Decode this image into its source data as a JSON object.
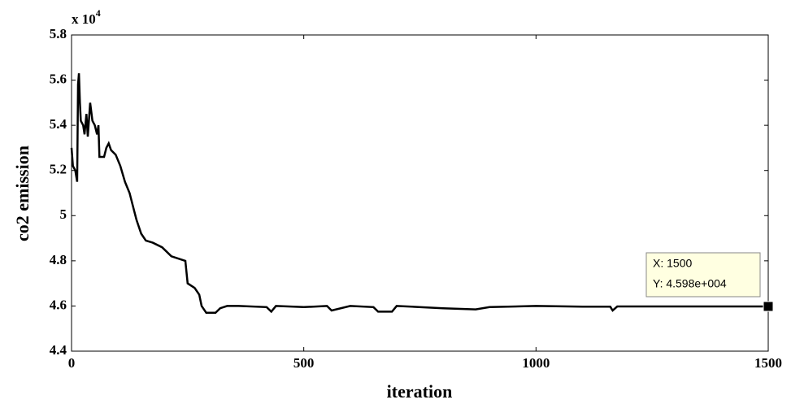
{
  "chart_data": {
    "type": "line",
    "xlabel": "iteration",
    "ylabel": "co2 emission",
    "y_multiplier": {
      "base": "x 10",
      "exponent": "4"
    },
    "xlim": [
      0,
      1500
    ],
    "ylim": [
      4.4,
      5.8
    ],
    "xticks": [
      0,
      500,
      1000,
      1500
    ],
    "yticks": [
      4.4,
      4.6,
      4.8,
      5,
      5.2,
      5.4,
      5.6,
      5.8
    ],
    "x": [
      0,
      3,
      8,
      12,
      14,
      16,
      18,
      20,
      25,
      28,
      32,
      35,
      40,
      45,
      50,
      55,
      58,
      60,
      70,
      75,
      80,
      85,
      95,
      105,
      115,
      125,
      135,
      140,
      150,
      160,
      175,
      195,
      215,
      245,
      250,
      265,
      275,
      280,
      290,
      310,
      320,
      335,
      360,
      420,
      430,
      440,
      500,
      550,
      560,
      600,
      650,
      660,
      690,
      700,
      800,
      870,
      900,
      1000,
      1100,
      1160,
      1165,
      1175,
      1500
    ],
    "series": [
      {
        "color": "#000000",
        "values": [
          5.3,
          5.22,
          5.2,
          5.15,
          5.58,
          5.63,
          5.5,
          5.42,
          5.4,
          5.36,
          5.45,
          5.35,
          5.5,
          5.42,
          5.4,
          5.36,
          5.4,
          5.26,
          5.26,
          5.3,
          5.32,
          5.29,
          5.27,
          5.22,
          5.15,
          5.1,
          5.02,
          4.98,
          4.92,
          4.89,
          4.88,
          4.86,
          4.82,
          4.8,
          4.7,
          4.68,
          4.65,
          4.6,
          4.57,
          4.57,
          4.59,
          4.6,
          4.6,
          4.595,
          4.575,
          4.6,
          4.595,
          4.6,
          4.58,
          4.6,
          4.595,
          4.575,
          4.575,
          4.6,
          4.59,
          4.585,
          4.595,
          4.6,
          4.597,
          4.597,
          4.58,
          4.598,
          4.598
        ]
      }
    ],
    "annotations": [
      {
        "x": 1500,
        "y": 4.598,
        "label_x": "X: 1500",
        "label_y": "Y: 4.598e+004"
      }
    ]
  }
}
